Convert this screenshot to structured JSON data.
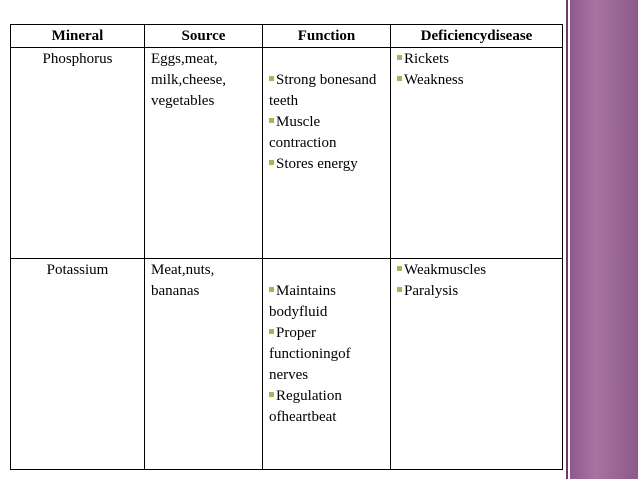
{
  "table": {
    "headers": [
      "Mineral",
      "Source",
      "Function",
      "Deficiencydisease"
    ],
    "rows": [
      {
        "mineral": "Phosphorus",
        "source": "Eggs,meat, milk,cheese, vegetables",
        "function": [
          "Strong bonesand teeth",
          "Muscle contraction",
          "Stores energy"
        ],
        "deficiency": [
          "Rickets",
          "Weakness"
        ]
      },
      {
        "mineral": "Potassium",
        "source": "Meat,nuts, bananas",
        "function": [
          "Maintains bodyfluid",
          "Proper functioningof nerves",
          "Regulation ofheartbeat"
        ],
        "deficiency": [
          "Weakmuscles",
          "Paralysis"
        ]
      }
    ]
  }
}
